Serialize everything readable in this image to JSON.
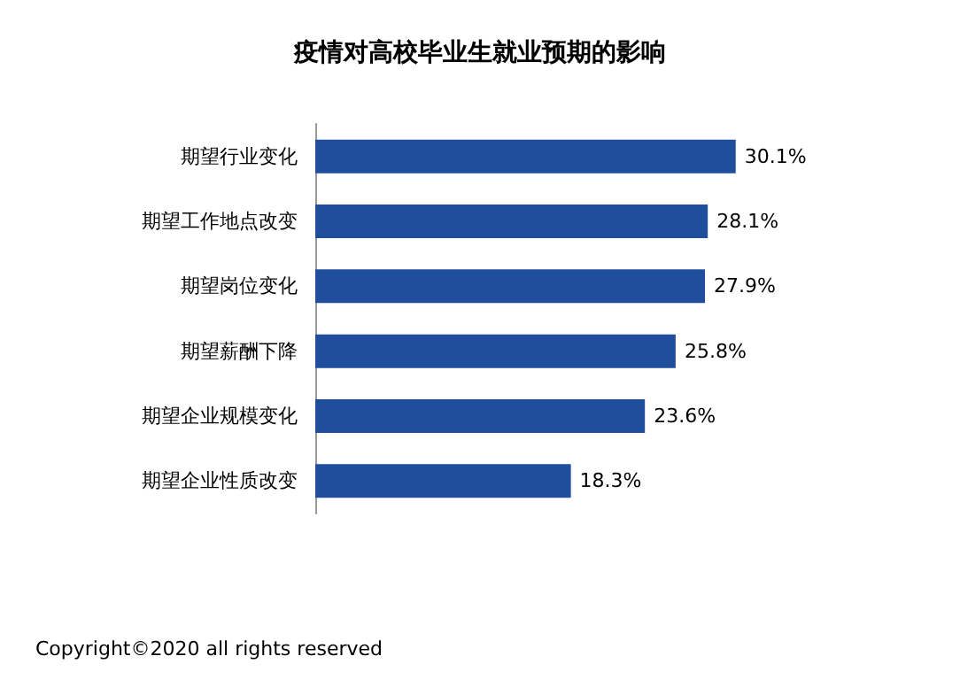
{
  "chart_data": {
    "type": "bar",
    "orientation": "horizontal",
    "title": "疫情对高校毕业生就业预期的影响",
    "categories": [
      "期望行业变化",
      "期望工作地点改变",
      "期望岗位变化",
      "期望薪酬下降",
      "期望企业规模变化",
      "期望企业性质改变"
    ],
    "values": [
      30.1,
      28.1,
      27.9,
      25.8,
      23.6,
      18.3
    ],
    "value_labels": [
      "30.1%",
      "28.1%",
      "27.9%",
      "25.8%",
      "23.6%",
      "18.3%"
    ],
    "color": "#1f4e9c",
    "annotations": [
      "Copyright©2020 all rights reserved"
    ]
  }
}
